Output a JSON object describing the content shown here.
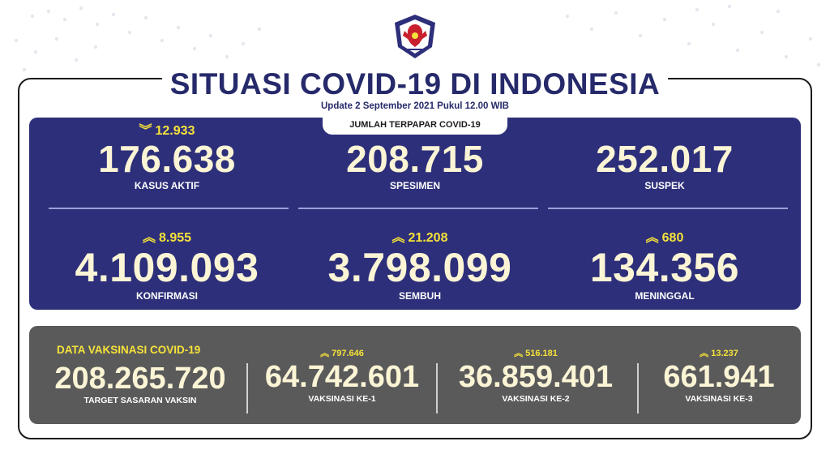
{
  "header": {
    "title": "SITUASI COVID-19 DI INDONESIA",
    "update": "Update 2 September 2021 Pukul 12.00 WIB",
    "section_tab": "JUMLAH TERPAPAR COVID-19"
  },
  "colors": {
    "navy_panel": "#2d2f7a",
    "gray_panel": "#5a5a5a",
    "accent_yellow": "#f5e23a",
    "number_cream": "#fbf5d6",
    "title_navy": "#262a6b"
  },
  "stats": {
    "kasus_aktif": {
      "delta": "12.933",
      "direction": "down",
      "value": "176.638",
      "label": "KASUS AKTIF"
    },
    "spesimen": {
      "value": "208.715",
      "label": "SPESIMEN"
    },
    "suspek": {
      "value": "252.017",
      "label": "SUSPEK"
    },
    "konfirmasi": {
      "delta": "8.955",
      "direction": "up",
      "value": "4.109.093",
      "label": "KONFIRMASI"
    },
    "sembuh": {
      "delta": "21.208",
      "direction": "up",
      "value": "3.798.099",
      "label": "SEMBUH"
    },
    "meninggal": {
      "delta": "680",
      "direction": "up",
      "value": "134.356",
      "label": "MENINGGAL"
    }
  },
  "vaksinasi": {
    "title": "DATA VAKSINASI COVID-19",
    "target": {
      "value": "208.265.720",
      "label": "TARGET SASARAN VAKSIN"
    },
    "dose1": {
      "delta": "797.646",
      "value": "64.742.601",
      "label": "VAKSINASI KE-1"
    },
    "dose2": {
      "delta": "516.181",
      "value": "36.859.401",
      "label": "VAKSINASI KE-2"
    },
    "dose3": {
      "delta": "13.237",
      "value": "661.941",
      "label": "VAKSINASI KE-3"
    }
  },
  "icons": {
    "down": "double-chevron-down-icon",
    "up": "double-chevron-up-icon",
    "logo": "garuda-emblem-icon"
  }
}
